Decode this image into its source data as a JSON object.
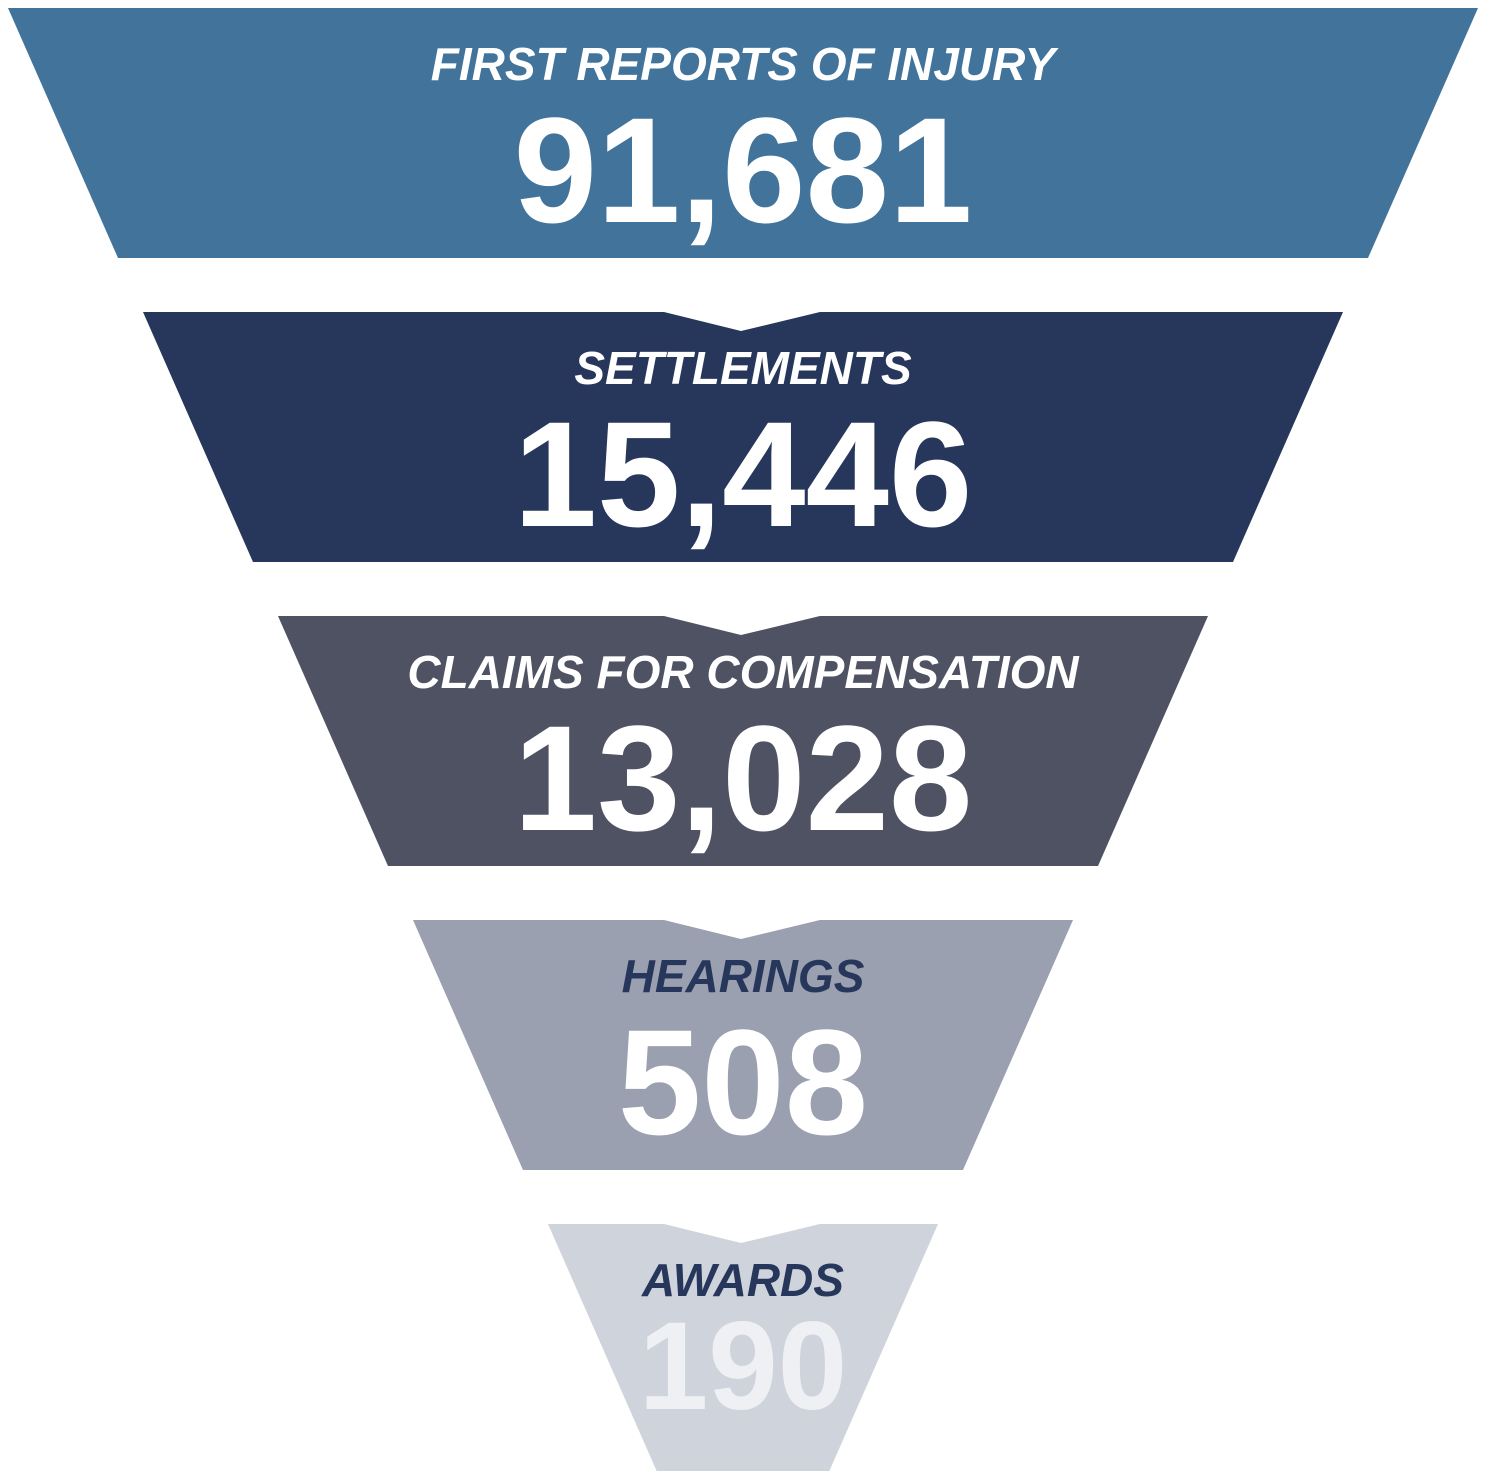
{
  "chart_data": {
    "type": "funnel",
    "categories": [
      "FIRST REPORTS OF INJURY",
      "SETTLEMENTS",
      "CLAIMS FOR COMPENSATION",
      "HEARINGS",
      "AWARDS"
    ],
    "values": [
      91681,
      15446,
      13028,
      508,
      190
    ],
    "value_labels": [
      "91,681",
      "15,446",
      "13,028",
      "508",
      "190"
    ],
    "colors": [
      "#41739b",
      "#27375b",
      "#4e5262",
      "#9ba0b0",
      "#cfd3db"
    ]
  }
}
